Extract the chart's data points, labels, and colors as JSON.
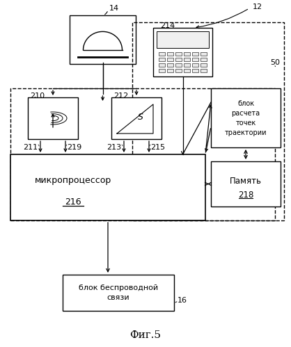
{
  "bg": "#ffffff",
  "title": "Фиг.5",
  "label_14": "14",
  "label_12": "12",
  "label_214": "214",
  "label_50": "50",
  "label_210": "210",
  "label_212": "212",
  "label_211": "211",
  "label_219": "219",
  "label_213": "213",
  "label_215": "215",
  "label_216": "216",
  "label_218": "218",
  "label_16": "16",
  "text_micro": "микропроцессор",
  "text_block_calc": "блок\nрасчета\nточек\nтраектории",
  "text_memory": "Память",
  "text_wireless": "блок беспроводной\nсвязи"
}
